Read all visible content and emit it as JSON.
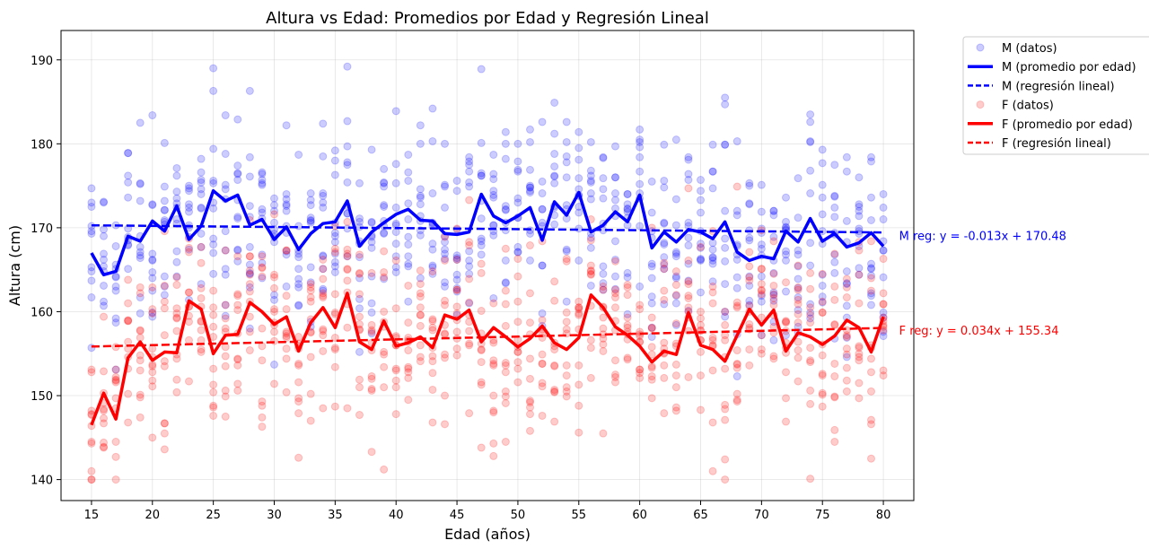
{
  "chart_data": {
    "type": "scatter",
    "title": "Altura vs Edad: Promedios por Edad y Regresión Lineal",
    "xlabel": "Edad (años)",
    "ylabel": "Altura (cm)",
    "xlim": [
      12.5,
      82.5
    ],
    "ylim": [
      137.5,
      193.5
    ],
    "xticks": [
      15,
      20,
      25,
      30,
      35,
      40,
      45,
      50,
      55,
      60,
      65,
      70,
      75,
      80
    ],
    "yticks": [
      140,
      150,
      160,
      170,
      180,
      190
    ],
    "grid": true,
    "legend_position": "outside upper right",
    "series": [
      {
        "name": "M (datos)",
        "kind": "scatter",
        "color": "#0000ff",
        "alpha": 0.2,
        "x": [],
        "y": []
      },
      {
        "name": "M (promedio por edad)",
        "kind": "line",
        "color": "#0000ff",
        "style": "solid",
        "x": [
          15,
          16,
          17,
          18,
          19,
          20,
          21,
          22,
          23,
          24,
          25,
          26,
          27,
          28,
          29,
          30,
          31,
          32,
          33,
          34,
          35,
          36,
          37,
          38,
          39,
          40,
          41,
          42,
          43,
          44,
          45,
          46,
          47,
          48,
          49,
          50,
          51,
          52,
          53,
          54,
          55,
          56,
          57,
          58,
          59,
          60,
          61,
          62,
          63,
          64,
          65,
          66,
          67,
          68,
          69,
          70,
          71,
          72,
          73,
          74,
          75,
          76,
          77,
          78,
          79,
          80
        ],
        "y": [
          167,
          164.4,
          164.8,
          169,
          168.4,
          170.8,
          169.6,
          172.6,
          168.6,
          170.2,
          174.4,
          173.2,
          173.9,
          170.3,
          171,
          168.6,
          170.1,
          167.4,
          169.3,
          170.5,
          170.7,
          173.2,
          167.8,
          169.5,
          170.6,
          171.6,
          172.2,
          170.9,
          170.8,
          169.3,
          169.2,
          169.5,
          174,
          171.4,
          170.6,
          171.4,
          172.4,
          168.5,
          173.1,
          171.5,
          174.2,
          169.5,
          170.3,
          171.9,
          170.7,
          173.9,
          167.6,
          169.5,
          168.3,
          169.8,
          169.5,
          168.7,
          170.7,
          167.1,
          166.1,
          166.6,
          166.3,
          169.6,
          168.3,
          171.1,
          168.4,
          169.3,
          167.7,
          168.2,
          169.4,
          167.8
        ]
      },
      {
        "name": "M (regresión lineal)",
        "kind": "line",
        "color": "#0000ff",
        "style": "dashed",
        "x": [
          15,
          80
        ],
        "y": [
          170.285,
          169.44
        ]
      },
      {
        "name": "F (datos)",
        "kind": "scatter",
        "color": "#ff0000",
        "alpha": 0.2,
        "x": [],
        "y": []
      },
      {
        "name": "F (promedio por edad)",
        "kind": "line",
        "color": "#ff0000",
        "style": "solid",
        "x": [
          15,
          16,
          17,
          18,
          19,
          20,
          21,
          22,
          23,
          24,
          25,
          26,
          27,
          28,
          29,
          30,
          31,
          32,
          33,
          34,
          35,
          36,
          37,
          38,
          39,
          40,
          41,
          42,
          43,
          44,
          45,
          46,
          47,
          48,
          49,
          50,
          51,
          52,
          53,
          54,
          55,
          56,
          57,
          58,
          59,
          60,
          61,
          62,
          63,
          64,
          65,
          66,
          67,
          68,
          69,
          70,
          71,
          72,
          73,
          74,
          75,
          76,
          77,
          78,
          79,
          80
        ],
        "y": [
          146.5,
          150.3,
          147.2,
          154.5,
          156.4,
          154.2,
          155.2,
          155.1,
          161.3,
          160.3,
          155,
          157.2,
          157.3,
          161.1,
          160,
          158.5,
          159.4,
          155.3,
          158.7,
          160.5,
          158.1,
          162.2,
          156.4,
          155.5,
          158.9,
          155.9,
          156.3,
          157,
          155.7,
          159.6,
          159.1,
          160.2,
          156.4,
          158.1,
          157,
          155.8,
          156.8,
          158.3,
          156.3,
          155.5,
          156.9,
          162,
          160.5,
          158.2,
          157.2,
          155.9,
          154,
          155.3,
          154.9,
          159.9,
          156,
          155.5,
          154.1,
          157.2,
          160.3,
          158.4,
          160.2,
          155.3,
          157.5,
          157,
          156.1,
          157.1,
          159,
          158.1,
          155.2,
          159.4
        ]
      },
      {
        "name": "F (regresión lineal)",
        "kind": "line",
        "color": "#ff0000",
        "style": "dashed",
        "x": [
          15,
          80
        ],
        "y": [
          155.85,
          158.06
        ]
      }
    ],
    "annotations": [
      {
        "text": "M reg: y = -0.013x + 170.48",
        "x": 81,
        "y": 169.1,
        "color": "#0000ff"
      },
      {
        "text": "F reg: y = 0.034x + 155.34",
        "x": 81,
        "y": 157.8,
        "color": "#ff0000"
      }
    ]
  }
}
